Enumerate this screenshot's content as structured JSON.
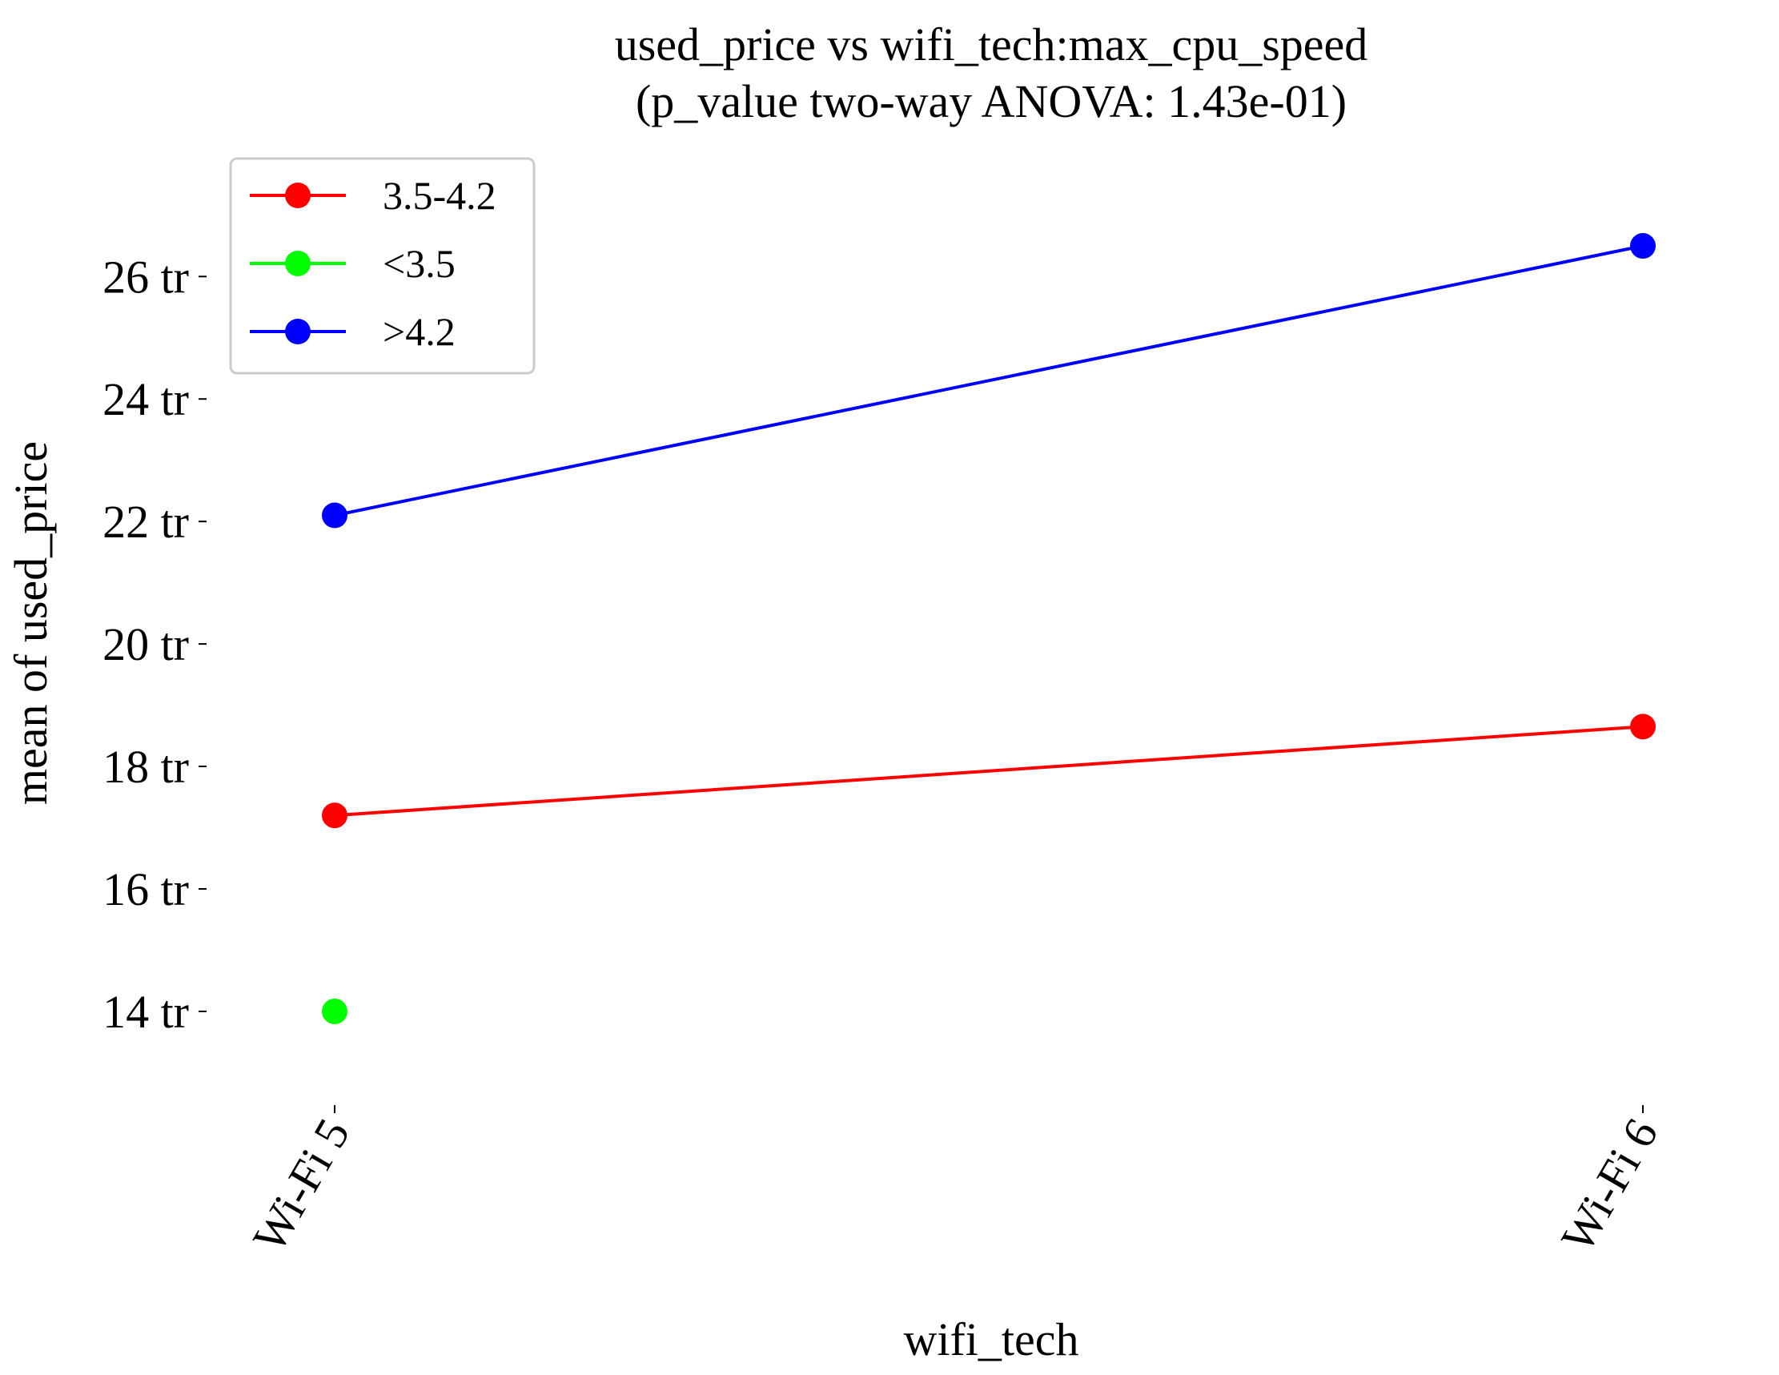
{
  "chart_data": {
    "type": "line",
    "title": "used_price vs wifi_tech:max_cpu_speed",
    "subtitle": "(p_value two-way ANOVA: 1.43e-01)",
    "xlabel": "wifi_tech",
    "ylabel": "mean of used_price",
    "categories": [
      "Wi-Fi 5",
      "Wi-Fi 6"
    ],
    "ylim": [
      12.6,
      27.9
    ],
    "yticks": [
      {
        "value": 14,
        "label": "14 tr"
      },
      {
        "value": 16,
        "label": "16 tr"
      },
      {
        "value": 18,
        "label": "18 tr"
      },
      {
        "value": 20,
        "label": "20 tr"
      },
      {
        "value": 22,
        "label": "22 tr"
      },
      {
        "value": 24,
        "label": "24 tr"
      },
      {
        "value": 26,
        "label": "26 tr"
      }
    ],
    "grid": false,
    "legend_position": "top-left",
    "series": [
      {
        "name": "3.5-4.2",
        "color": "#ff0000",
        "values": [
          17.2,
          18.65
        ]
      },
      {
        "name": "<3.5",
        "color": "#00ff00",
        "values": [
          14.0,
          null
        ]
      },
      {
        "name": ">4.2",
        "color": "#0000ff",
        "values": [
          22.1,
          26.5
        ]
      }
    ]
  }
}
